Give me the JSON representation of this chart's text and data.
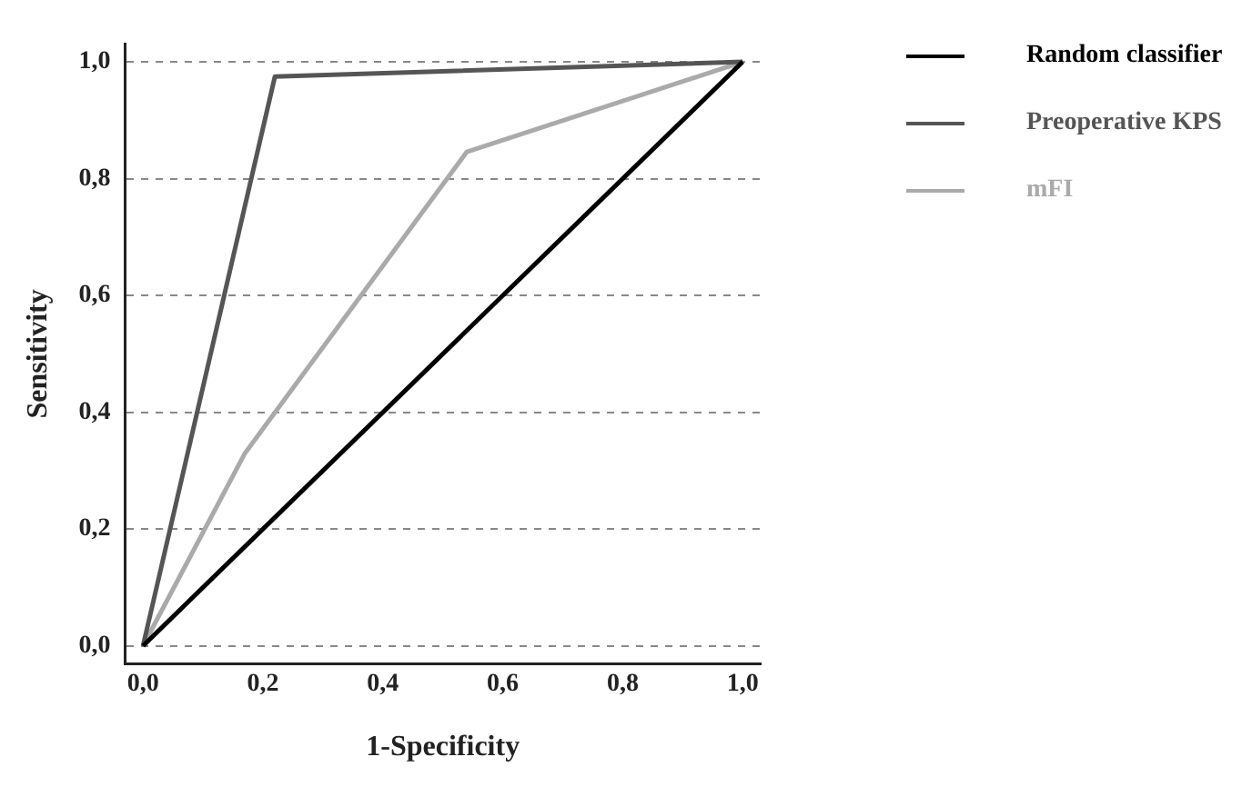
{
  "chart_data": {
    "type": "line",
    "xlabel": "1-Specificity",
    "ylabel": "Sensitivity",
    "xlim": [
      -0.03,
      1.03
    ],
    "ylim": [
      -0.03,
      1.03
    ],
    "xticks": [
      {
        "value": 0,
        "label": "0,0"
      },
      {
        "value": 0.2,
        "label": "0,2"
      },
      {
        "value": 0.4,
        "label": "0,4"
      },
      {
        "value": 0.6,
        "label": "0,6"
      },
      {
        "value": 0.8,
        "label": "0,8"
      },
      {
        "value": 1,
        "label": "1,0"
      }
    ],
    "yticks": [
      {
        "value": 0,
        "label": "0,0"
      },
      {
        "value": 0.2,
        "label": "0,2"
      },
      {
        "value": 0.4,
        "label": "0,4"
      },
      {
        "value": 0.6,
        "label": "0,6"
      },
      {
        "value": 0.8,
        "label": "0,8"
      },
      {
        "value": 1,
        "label": "1,0"
      }
    ],
    "grid": "y",
    "legend": "right",
    "marker": "none",
    "line_style": "solid",
    "series": [
      {
        "name": "Random classifier",
        "color": "#000000",
        "x": [
          0,
          1
        ],
        "values": [
          0,
          1
        ]
      },
      {
        "name": "Preoperative KPS",
        "color": "#555555",
        "x": [
          0,
          0.22,
          1
        ],
        "values": [
          0,
          0.975,
          1
        ]
      },
      {
        "name": "mFI",
        "color": "#aaaaaa",
        "x": [
          0,
          0.17,
          0.54,
          1
        ],
        "values": [
          0,
          0.33,
          0.846,
          1
        ]
      }
    ]
  }
}
